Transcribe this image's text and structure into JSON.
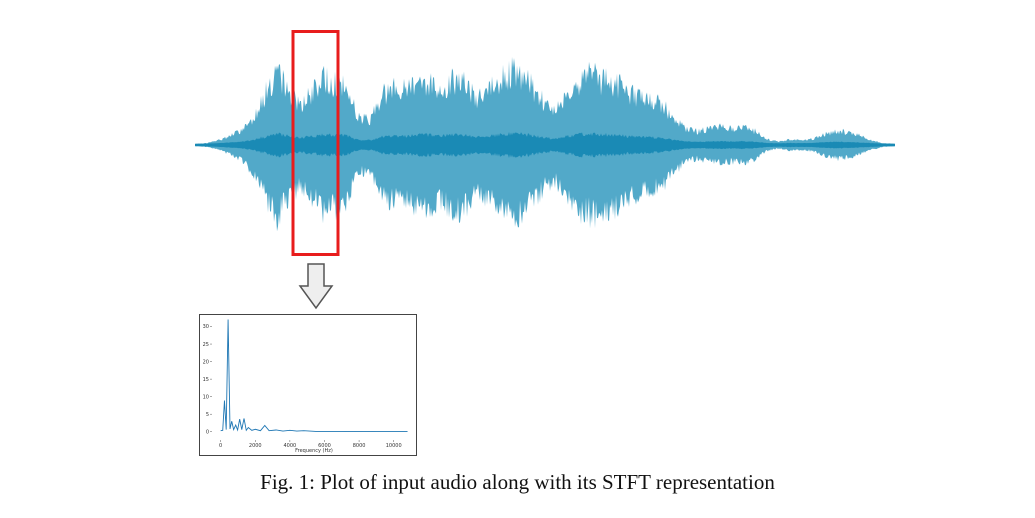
{
  "colors": {
    "waveform_outer": "#52a9c9",
    "waveform_inner": "#1a8ab5",
    "highlight_box": "#e81c1c",
    "spectrum_line": "#1f77b4",
    "arrow_fill": "#eeeeee",
    "arrow_stroke": "#555555"
  },
  "caption": "Fig. 1: Plot of input audio along with its STFT representation",
  "chart_data": [
    {
      "type": "area",
      "series": [
        {
          "values": [
            0.01,
            0.02,
            0.05,
            0.1,
            0.16,
            0.3,
            0.55,
            0.78,
            0.6,
            0.45,
            0.55,
            0.72,
            0.68,
            0.62,
            0.3,
            0.28,
            0.55,
            0.62,
            0.6,
            0.72,
            0.68,
            0.6,
            0.7,
            0.73,
            0.5,
            0.56,
            0.68,
            0.8,
            0.74,
            0.62,
            0.45,
            0.4,
            0.6,
            0.72,
            0.76,
            0.7,
            0.68,
            0.6,
            0.52,
            0.5,
            0.45,
            0.3,
            0.18,
            0.15,
            0.17,
            0.2,
            0.18,
            0.2,
            0.15,
            0.06,
            0.04,
            0.06,
            0.05,
            0.07,
            0.12,
            0.15,
            0.14,
            0.1,
            0.05,
            0.02,
            0.01
          ]
        }
      ]
    },
    {
      "type": "line",
      "xlabel": "Frequency (Hz)",
      "x_ticks": [
        0,
        2000,
        4000,
        6000,
        8000,
        10000
      ],
      "y_ticks": [
        0,
        5,
        10,
        15,
        20,
        25,
        30
      ],
      "xlim": [
        -500,
        11000
      ],
      "ylim": [
        -1.5,
        33
      ],
      "series": [
        {
          "points": [
            [
              0,
              0.3
            ],
            [
              120,
              0.4
            ],
            [
              220,
              8.9
            ],
            [
              320,
              0.6
            ],
            [
              430,
              32
            ],
            [
              540,
              0.8
            ],
            [
              640,
              3
            ],
            [
              750,
              0.6
            ],
            [
              870,
              1.9
            ],
            [
              980,
              0.5
            ],
            [
              1100,
              3.6
            ],
            [
              1220,
              0.6
            ],
            [
              1350,
              3.8
            ],
            [
              1480,
              0.4
            ],
            [
              1600,
              1.2
            ],
            [
              1800,
              0.4
            ],
            [
              2000,
              0.7
            ],
            [
              2300,
              0.3
            ],
            [
              2550,
              1.8
            ],
            [
              2800,
              0.3
            ],
            [
              3200,
              0.5
            ],
            [
              3600,
              0.2
            ],
            [
              4000,
              0.4
            ],
            [
              4400,
              0.2
            ],
            [
              4800,
              0.3
            ],
            [
              5500,
              0.1
            ],
            [
              7000,
              0.1
            ],
            [
              9000,
              0.05
            ],
            [
              10800,
              0.05
            ]
          ]
        }
      ]
    }
  ]
}
